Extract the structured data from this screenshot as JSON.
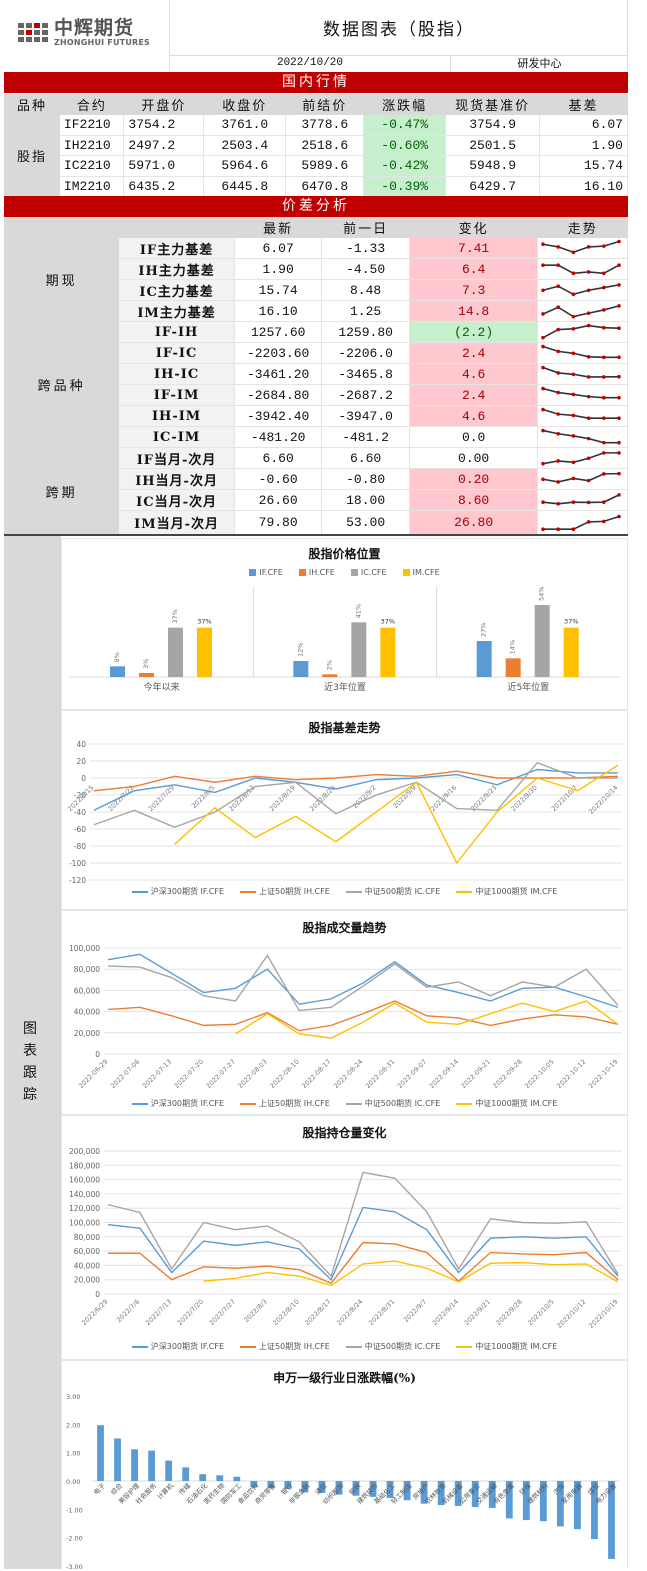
{
  "header": {
    "logo_cn": "中辉期货",
    "logo_en": "ZHONGHUI FUTURES",
    "title": "数据图表（股指）",
    "date": "2022/10/20",
    "department": "研发中心"
  },
  "colors": {
    "red_bar": "#c00000",
    "up": "#ffc7ce",
    "down": "#c6efce",
    "IF": "#5b9bd5",
    "IH": "#ed7d31",
    "IC": "#a5a5a5",
    "IM": "#ffc000"
  },
  "domestic": {
    "section_title": "国内行情",
    "headers": [
      "品种",
      "合约",
      "开盘价",
      "收盘价",
      "前结价",
      "涨跌幅",
      "现货基准价",
      "基差"
    ],
    "category": "股指",
    "rows": [
      {
        "contract": "IF2210",
        "open": "3754.2",
        "close": "3761.0",
        "prev_settle": "3778.6",
        "change_pct": "-0.47%",
        "spot": "3754.9",
        "basis": "6.07"
      },
      {
        "contract": "IH2210",
        "open": "2497.2",
        "close": "2503.4",
        "prev_settle": "2518.6",
        "change_pct": "-0.60%",
        "spot": "2501.5",
        "basis": "1.90"
      },
      {
        "contract": "IC2210",
        "open": "5971.0",
        "close": "5964.6",
        "prev_settle": "5989.6",
        "change_pct": "-0.42%",
        "spot": "5948.9",
        "basis": "15.74"
      },
      {
        "contract": "IM2210",
        "open": "6435.2",
        "close": "6445.8",
        "prev_settle": "6470.8",
        "change_pct": "-0.39%",
        "spot": "6429.7",
        "basis": "16.10"
      }
    ]
  },
  "spread": {
    "section_title": "价差分析",
    "headers": [
      "",
      "",
      "最新",
      "前一日",
      "变化",
      "走势"
    ],
    "groups": [
      {
        "name": "期现",
        "rows": [
          {
            "label": "IF主力基差",
            "latest": "6.07",
            "prev": "-1.33",
            "change": "7.41",
            "status": "up",
            "trend": [
              4,
              3,
              1,
              3,
              3.3,
              5
            ]
          },
          {
            "label": "IH主力基差",
            "latest": "1.90",
            "prev": "-4.50",
            "change": "6.4",
            "status": "up",
            "trend": [
              4,
              4,
              1,
              1.5,
              1,
              4
            ]
          },
          {
            "label": "IC主力基差",
            "latest": "15.74",
            "prev": "8.48",
            "change": "7.3",
            "status": "up",
            "trend": [
              2.5,
              4,
              1,
              2.5,
              3.5,
              4.5
            ]
          },
          {
            "label": "IM主力基差",
            "latest": "16.10",
            "prev": "1.25",
            "change": "14.8",
            "status": "up",
            "trend": [
              1.5,
              4,
              0.5,
              1.8,
              3,
              4.5
            ]
          }
        ]
      },
      {
        "name": "跨品种",
        "rows": [
          {
            "label": "IF-IH",
            "latest": "1257.60",
            "prev": "1259.80",
            "change": "(2.2)",
            "status": "down",
            "trend": [
              0.5,
              3.5,
              3.8,
              5,
              4.2,
              4
            ]
          },
          {
            "label": "IF-IC",
            "latest": "-2203.60",
            "prev": "-2206.0",
            "change": "2.4",
            "status": "up",
            "trend": [
              5,
              3.2,
              2.5,
              1.2,
              1,
              1
            ]
          },
          {
            "label": "IH-IC",
            "latest": "-3461.20",
            "prev": "-3465.8",
            "change": "4.6",
            "status": "up",
            "trend": [
              5,
              3,
              2.5,
              1.5,
              1.5,
              1.6
            ]
          },
          {
            "label": "IF-IM",
            "latest": "-2684.80",
            "prev": "-2687.2",
            "change": "2.4",
            "status": "up",
            "trend": [
              5,
              3.5,
              2.8,
              2,
              1.6,
              1.6
            ]
          },
          {
            "label": "IH-IM",
            "latest": "-3942.40",
            "prev": "-3947.0",
            "change": "4.6",
            "status": "up",
            "trend": [
              5,
              3.3,
              2.8,
              1.8,
              1.8,
              1.8
            ]
          },
          {
            "label": "IC-IM",
            "latest": "-481.20",
            "prev": "-481.2",
            "change": "0.0",
            "status": "none",
            "trend": [
              5,
              3.8,
              3,
              2,
              0.5,
              0.5
            ]
          }
        ]
      },
      {
        "name": "跨期",
        "rows": [
          {
            "label": "IF当月-次月",
            "latest": "6.60",
            "prev": "6.60",
            "change": "0.00",
            "status": "none",
            "trend": [
              0.5,
              1.5,
              1,
              2.5,
              4.5,
              4.5
            ]
          },
          {
            "label": "IH当月-次月",
            "latest": "-0.60",
            "prev": "-0.80",
            "change": "0.20",
            "status": "up",
            "trend": [
              2.5,
              1.5,
              2.8,
              2,
              4.5,
              4.6
            ]
          },
          {
            "label": "IC当月-次月",
            "latest": "26.60",
            "prev": "18.00",
            "change": "8.60",
            "status": "up",
            "trend": [
              1.8,
              1.2,
              1.8,
              1.7,
              1.8,
              4.5
            ]
          },
          {
            "label": "IM当月-次月",
            "latest": "79.80",
            "prev": "53.00",
            "change": "26.80",
            "status": "up",
            "trend": [
              0.3,
              0.3,
              0.3,
              3,
              3.2,
              5
            ]
          }
        ]
      }
    ]
  },
  "chart_tracking": {
    "side_label": "图表跟踪"
  },
  "chart_data": [
    {
      "type": "bar",
      "title": "股指价格位置",
      "categories": [
        "今年以来",
        "近3年位置",
        "近5年位置"
      ],
      "series": [
        {
          "name": "IF.CFE",
          "values": [
            8,
            12,
            27
          ]
        },
        {
          "name": "IH.CFE",
          "values": [
            3,
            2,
            14
          ]
        },
        {
          "name": "IC.CFE",
          "values": [
            37,
            41,
            54
          ]
        },
        {
          "name": "IM.CFE",
          "values": [
            37,
            37,
            37
          ]
        }
      ],
      "value_labels": [
        [
          "8%",
          "3%",
          "37%",
          "37%"
        ],
        [
          "12%",
          "2%",
          "41%",
          "37%"
        ],
        [
          "27%",
          "14%",
          "54%",
          "37%"
        ]
      ],
      "legend_position": "top",
      "grid": false
    },
    {
      "type": "line",
      "title": "股指基差走势",
      "x": [
        "2022/7/15",
        "2022/7/22",
        "2022/7/29",
        "2022/8/5",
        "2022/8/12",
        "2022/8/19",
        "2022/8/26",
        "2022/9/2",
        "2022/9/9",
        "2022/9/16",
        "2022/9/23",
        "2022/9/30",
        "2022/10/7",
        "2022/10/14"
      ],
      "series": [
        {
          "name": "沪深300期货 IF.CFE",
          "values": [
            -38,
            -15,
            -8,
            -17,
            0,
            -5,
            -13,
            -2,
            0,
            4,
            -8,
            10,
            6,
            6
          ]
        },
        {
          "name": "上证50期货 IH.CFE",
          "values": [
            -15,
            -10,
            2,
            -5,
            2,
            -2,
            0,
            4,
            2,
            8,
            0,
            0,
            0,
            2
          ]
        },
        {
          "name": "中证500期货 IC.CFE",
          "values": [
            -55,
            -38,
            -58,
            -40,
            -10,
            -5,
            -42,
            -20,
            -5,
            -36,
            -38,
            18,
            0,
            0
          ]
        },
        {
          "name": "中证1000期货 IM.CFE",
          "values": [
            null,
            null,
            -78,
            -35,
            -70,
            -45,
            -75,
            -40,
            -5,
            -100,
            -40,
            0,
            -15,
            15
          ]
        }
      ],
      "yticks": [
        40,
        20,
        0,
        -20,
        -40,
        -60,
        -80,
        -100,
        -120
      ],
      "ylim": [
        -120,
        40
      ],
      "legend_position": "bottom",
      "grid": true
    },
    {
      "type": "line",
      "title": "股指成交量趋势",
      "x": [
        "2022-06-29",
        "2022-07-06",
        "2022-07-13",
        "2022-07-20",
        "2022-07-27",
        "2022-08-03",
        "2022-08-10",
        "2022-08-17",
        "2022-08-24",
        "2022-08-31",
        "2022-09-07",
        "2022-09-14",
        "2022-09-21",
        "2022-09-28",
        "2022-10-05",
        "2022-10-12",
        "2022-10-19"
      ],
      "series": [
        {
          "name": "沪深300期货 IF.CFE",
          "values": [
            89000,
            94000,
            76000,
            58000,
            62000,
            80000,
            47000,
            52000,
            67000,
            87000,
            65000,
            58000,
            50000,
            62000,
            63000,
            54000,
            44000
          ]
        },
        {
          "name": "上证50期货 IH.CFE",
          "values": [
            42000,
            44000,
            36000,
            27000,
            28000,
            39000,
            22000,
            27000,
            38000,
            50000,
            36000,
            34000,
            27000,
            33000,
            37000,
            35000,
            28000
          ]
        },
        {
          "name": "中证500期货 IC.CFE",
          "values": [
            83000,
            82000,
            72000,
            55000,
            50000,
            93000,
            41000,
            44000,
            64000,
            85000,
            63000,
            68000,
            55000,
            68000,
            63000,
            80000,
            46000
          ]
        },
        {
          "name": "中证1000期货 IM.CFE",
          "values": [
            null,
            null,
            null,
            null,
            19000,
            38000,
            19000,
            15000,
            30000,
            48000,
            30000,
            28000,
            38000,
            48000,
            40000,
            50000,
            28000
          ]
        }
      ],
      "yticks": [
        100000,
        80000,
        60000,
        40000,
        20000,
        0
      ],
      "ylim": [
        0,
        100000
      ],
      "legend_position": "bottom",
      "grid": true
    },
    {
      "type": "line",
      "title": "股指持仓量变化",
      "x": [
        "2022/6/29",
        "2022/7/6",
        "2022/7/13",
        "2022/7/20",
        "2022/7/27",
        "2022/8/3",
        "2022/8/10",
        "2022/8/17",
        "2022/8/24",
        "2022/8/31",
        "2022/9/7",
        "2022/9/14",
        "2022/9/21",
        "2022/9/28",
        "2022/10/5",
        "2022/10/12",
        "2022/10/19"
      ],
      "series": [
        {
          "name": "沪深300期货 IF.CFE",
          "values": [
            97000,
            92000,
            30000,
            74000,
            68000,
            73000,
            63000,
            20000,
            121000,
            115000,
            90000,
            30000,
            78000,
            80000,
            78000,
            80000,
            25000
          ]
        },
        {
          "name": "上证50期货 IH.CFE",
          "values": [
            57000,
            57000,
            20000,
            38000,
            36000,
            39000,
            34000,
            15000,
            72000,
            70000,
            58000,
            18000,
            58000,
            56000,
            55000,
            58000,
            20000
          ]
        },
        {
          "name": "中证500期货 IC.CFE",
          "values": [
            125000,
            114000,
            35000,
            100000,
            90000,
            95000,
            73000,
            25000,
            170000,
            162000,
            115000,
            35000,
            105000,
            100000,
            99000,
            101000,
            28000
          ]
        },
        {
          "name": "中证1000期货 IM.CFE",
          "values": [
            null,
            null,
            null,
            18000,
            22000,
            30000,
            25000,
            12000,
            42000,
            46000,
            36000,
            17000,
            43000,
            44000,
            41000,
            42000,
            17000
          ]
        }
      ],
      "yticks": [
        200000,
        180000,
        160000,
        140000,
        120000,
        100000,
        80000,
        60000,
        40000,
        20000,
        0
      ],
      "ylim": [
        0,
        200000
      ],
      "legend_position": "bottom",
      "grid": true
    },
    {
      "type": "bar",
      "title": "申万一级行业日涨跌幅(%)",
      "categories": [
        "电子",
        "综合",
        "美容护理",
        "社会服务",
        "计算机",
        "传媒",
        "石油石化",
        "医药生物",
        "国防军工",
        "食品饮料",
        "商贸零售",
        "银行",
        "非银金融",
        "通信",
        "纺织服饰",
        "钢铁",
        "建筑装饰",
        "基础化工",
        "轻工制造",
        "房地产",
        "农林牧渔",
        "机械设备",
        "公用事业",
        "交通运输",
        "有色金属",
        "环保",
        "建筑材料",
        "汽车",
        "家用电器",
        "煤炭",
        "电力设备"
      ],
      "values": [
        1.97,
        1.5,
        1.12,
        1.07,
        0.72,
        0.48,
        0.24,
        0.2,
        0.15,
        -0.22,
        -0.26,
        -0.28,
        -0.4,
        -0.42,
        -0.48,
        -0.52,
        -0.56,
        -0.6,
        -0.68,
        -0.8,
        -0.85,
        -0.88,
        -0.92,
        -0.95,
        -1.32,
        -1.38,
        -1.42,
        -1.6,
        -1.7,
        -2.05,
        -2.75
      ],
      "yticks": [
        "3.00",
        "2.00",
        "1.00",
        "0.00",
        "-1.00",
        "-2.00",
        "-3.00"
      ],
      "ylim": [
        -3,
        3
      ],
      "grid": false
    }
  ]
}
